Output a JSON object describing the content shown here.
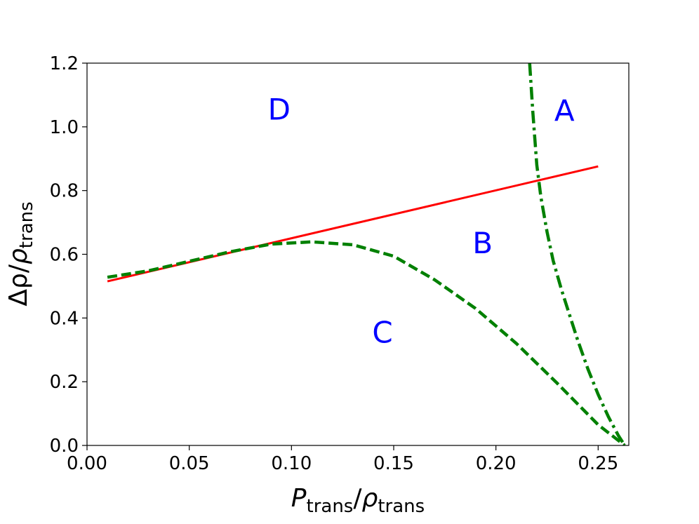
{
  "chart_data": {
    "type": "line",
    "title": "",
    "xlim": [
      0.0,
      0.265
    ],
    "ylim": [
      0.0,
      1.2
    ],
    "xticks": [
      "0.00",
      "0.05",
      "0.10",
      "0.15",
      "0.20",
      "0.25"
    ],
    "yticks": [
      "0.0",
      "0.2",
      "0.4",
      "0.6",
      "0.8",
      "1.0",
      "1.2"
    ],
    "xlabel": {
      "main": "P",
      "main_sub": "trans",
      "sep": "/",
      "denom": "ρ",
      "denom_sub": "trans"
    },
    "ylabel": {
      "main": "Δρ",
      "sep": "/",
      "denom": "ρ",
      "denom_sub": "trans"
    },
    "grid": false,
    "series": [
      {
        "style": "solid",
        "color": "#ff0000",
        "x": [
          0.01,
          0.25
        ],
        "y": [
          0.515,
          0.876
        ]
      },
      {
        "style": "dashed",
        "color": "#008000",
        "x": [
          0.01,
          0.03,
          0.05,
          0.07,
          0.09,
          0.11,
          0.13,
          0.15,
          0.17,
          0.19,
          0.21,
          0.23,
          0.25,
          0.263
        ],
        "y": [
          0.528,
          0.548,
          0.578,
          0.608,
          0.632,
          0.639,
          0.63,
          0.594,
          0.52,
          0.43,
          0.32,
          0.195,
          0.065,
          0.0
        ]
      },
      {
        "style": "dashdot",
        "color": "#008000",
        "x": [
          0.2165,
          0.218,
          0.22,
          0.222,
          0.225,
          0.228,
          0.232,
          0.236,
          0.24,
          0.245,
          0.25,
          0.255,
          0.26,
          0.263
        ],
        "y": [
          1.2,
          1.05,
          0.88,
          0.78,
          0.67,
          0.58,
          0.49,
          0.41,
          0.33,
          0.24,
          0.16,
          0.09,
          0.03,
          0.0
        ]
      }
    ],
    "annotations": [
      {
        "text": "A",
        "x": 0.2335,
        "y": 1.05,
        "color": "#0000ff"
      },
      {
        "text": "B",
        "x": 0.1935,
        "y": 0.635,
        "color": "#0000ff"
      },
      {
        "text": "C",
        "x": 0.1445,
        "y": 0.355,
        "color": "#0000ff"
      },
      {
        "text": "D",
        "x": 0.094,
        "y": 1.055,
        "color": "#0000ff"
      }
    ]
  }
}
